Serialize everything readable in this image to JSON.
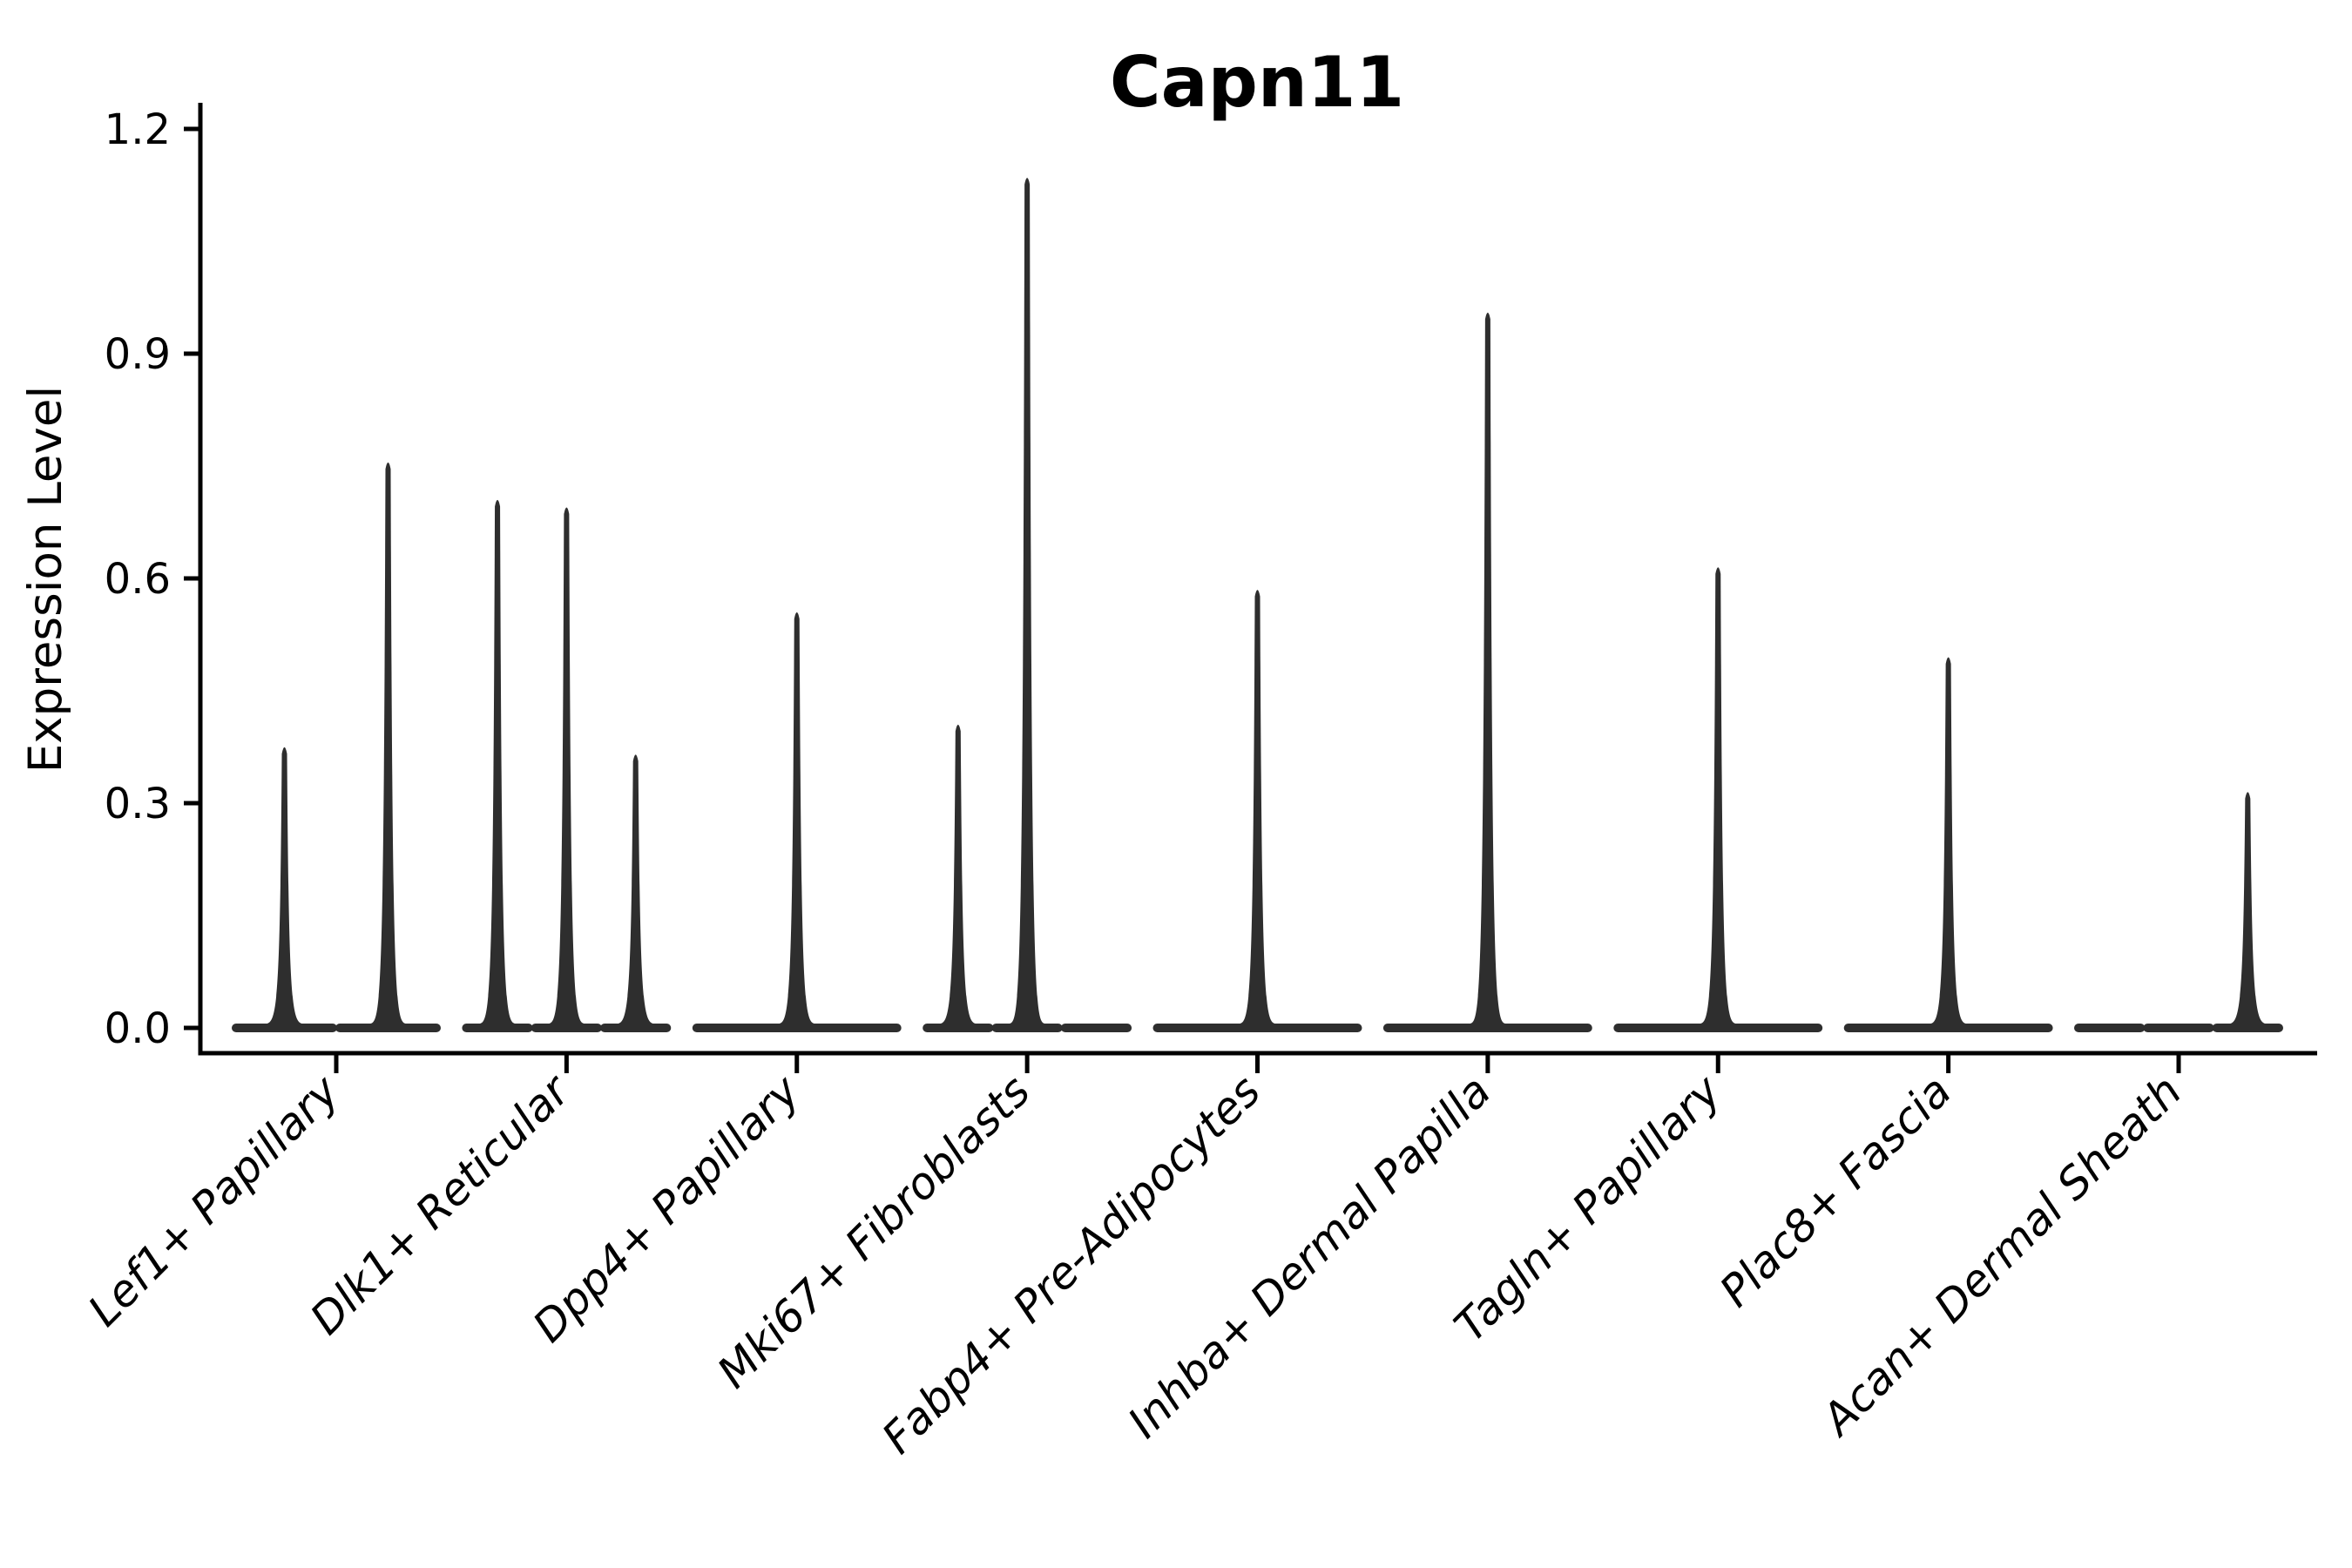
{
  "header": {
    "title": "Capn11"
  },
  "chart_data": {
    "type": "violin",
    "title": "Capn11",
    "ylabel": "Expression Level",
    "xlabel": "",
    "ylim": [
      0,
      1.2
    ],
    "yticks": [
      0.0,
      0.3,
      0.6,
      0.9,
      1.2
    ],
    "ytick_labels": [
      "0.0",
      "0.3",
      "0.6",
      "0.9",
      "1.2"
    ],
    "grid": false,
    "legend_position": "none",
    "categories": [
      "Lef1+ Papillary",
      "Dlk1+ Reticular",
      "Dpp4+ Papillary",
      "Mki67+ Fibroblasts",
      "Fabp4+ Pre-Adipocytes",
      "Inhba+ Dermal Papilla",
      "Tagln+ Papillary",
      "Plac8+ Fascia",
      "Acan+ Dermal Sheath"
    ],
    "violins": [
      {
        "category": "Lef1+ Papillary",
        "groups": [
          {
            "offset": -0.225,
            "max": 0.38
          },
          {
            "offset": 0.225,
            "max": 0.76
          }
        ]
      },
      {
        "category": "Dlk1+ Reticular",
        "groups": [
          {
            "offset": -0.3,
            "max": 0.71
          },
          {
            "offset": 0,
            "max": 0.7
          },
          {
            "offset": 0.3,
            "max": 0.37
          }
        ]
      },
      {
        "category": "Dpp4+ Papillary",
        "groups": [
          {
            "offset": 0,
            "max": 0.56
          }
        ]
      },
      {
        "category": "Mki67+ Fibroblasts",
        "groups": [
          {
            "offset": -0.3,
            "max": 0.41
          },
          {
            "offset": 0,
            "max": 1.14
          },
          {
            "offset": 0.3,
            "max": 0.0
          }
        ]
      },
      {
        "category": "Fabp4+ Pre-Adipocytes",
        "groups": [
          {
            "offset": 0,
            "max": 0.59
          }
        ]
      },
      {
        "category": "Inhba+ Dermal Papilla",
        "groups": [
          {
            "offset": 0,
            "max": 0.96
          }
        ]
      },
      {
        "category": "Tagln+ Papillary",
        "groups": [
          {
            "offset": 0,
            "max": 0.62
          }
        ]
      },
      {
        "category": "Plac8+ Fascia",
        "groups": [
          {
            "offset": 0,
            "max": 0.5
          }
        ]
      },
      {
        "category": "Acan+ Dermal Sheath",
        "groups": [
          {
            "offset": -0.3,
            "max": 0.0
          },
          {
            "offset": 0,
            "max": 0.0
          },
          {
            "offset": 0.3,
            "max": 0.32
          }
        ]
      }
    ]
  },
  "style": {
    "violin_color": "#2e2e2e",
    "axis_color": "#000000",
    "text_color": "#000000",
    "background": "#ffffff"
  }
}
